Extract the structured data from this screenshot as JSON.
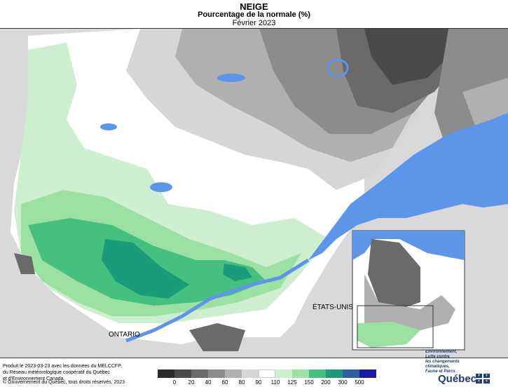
{
  "header": {
    "title": "NEIGE",
    "subtitle": "Pourcentage de la normale (%)",
    "period": "Février 2023"
  },
  "map": {
    "labels": {
      "ontario": "ONTARIO",
      "usa": "ÉTATS-UNIS"
    }
  },
  "legend": {
    "ticks": [
      "0",
      "20",
      "40",
      "60",
      "80",
      "90",
      "110",
      "125",
      "150",
      "200",
      "300",
      "500"
    ],
    "colors": [
      "#2b2b2b",
      "#4a4a4a",
      "#6a6a6a",
      "#8c8c8c",
      "#b0b0b0",
      "#d6d6d6",
      "#ffffff",
      "#cdeecf",
      "#9de0a3",
      "#46c07f",
      "#1a9b7a",
      "#2b5fa6",
      "#1c1aa8"
    ]
  },
  "credits": {
    "line1": "Produit le 2023-03-23 avec les données du MELCCFP,",
    "line2": "du Réseau météorologique coopératif du Québec",
    "line3": "et d'Environnement Canada.",
    "copyright": "© Gouvernement du Québec, tous droits réservés, 2023"
  },
  "logo": {
    "tagline": [
      "Environnement,",
      "Lutte contre",
      "les changements",
      "climatiques,",
      "Faune et Parcs"
    ],
    "name": "Québec",
    "icon": "fleur-de-lis-icon"
  },
  "colors": {
    "water": "#5f95e8",
    "land_outside": "#d9d9d9"
  }
}
